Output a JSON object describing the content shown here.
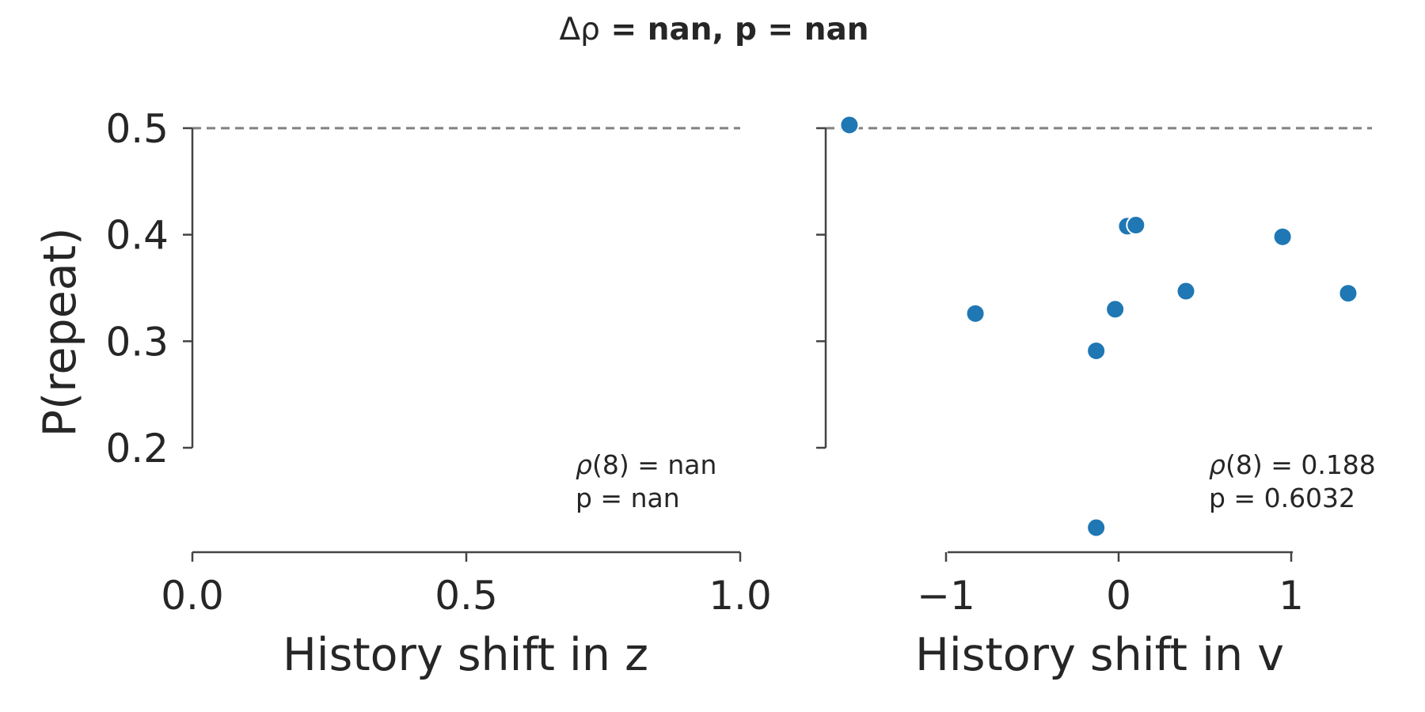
{
  "figure": {
    "title_symbol": "Δρ",
    "title_rest": " = nan, p = nan"
  },
  "chart_data": [
    {
      "type": "scatter",
      "xlabel": "History shift in z",
      "ylabel": "P(repeat)",
      "xlim": [
        0.0,
        1.0
      ],
      "ylim": [
        0.1,
        0.5
      ],
      "xticks": [
        0.0,
        0.5,
        1.0
      ],
      "xtick_labels": [
        "0.0",
        "0.5",
        "1.0"
      ],
      "yticks": [
        0.2,
        0.3,
        0.4,
        0.5
      ],
      "ytick_labels": [
        "0.2",
        "0.3",
        "0.4",
        "0.5"
      ],
      "reference_line_y": 0.5,
      "points": [],
      "color": "#1f77b4",
      "annotation": {
        "rho_symbol": "ρ",
        "line1_rest": "(8) = nan",
        "line2": "p = nan"
      },
      "grid": false
    },
    {
      "type": "scatter",
      "xlabel": "History shift in v",
      "ylabel": "",
      "xlim": [
        -1.55,
        1.55
      ],
      "ylim": [
        0.1,
        0.5
      ],
      "xticks": [
        -1,
        0,
        1
      ],
      "xtick_labels": [
        "−1",
        "0",
        "1"
      ],
      "yticks": [
        0.2,
        0.3,
        0.4,
        0.5
      ],
      "ytick_labels": [],
      "reference_line_y": 0.5,
      "points": [
        {
          "x": -1.56,
          "y": 0.503
        },
        {
          "x": -0.83,
          "y": 0.326
        },
        {
          "x": -0.13,
          "y": 0.291
        },
        {
          "x": -0.02,
          "y": 0.33
        },
        {
          "x": 0.05,
          "y": 0.408
        },
        {
          "x": 0.1,
          "y": 0.409
        },
        {
          "x": 0.39,
          "y": 0.347
        },
        {
          "x": 0.95,
          "y": 0.398
        },
        {
          "x": 1.33,
          "y": 0.345
        },
        {
          "x": -0.13,
          "y": 0.125
        }
      ],
      "color": "#1f77b4",
      "annotation": {
        "rho_symbol": "ρ",
        "line1_rest": "(8) = 0.188",
        "line2": "p = 0.6032"
      },
      "grid": false
    }
  ]
}
